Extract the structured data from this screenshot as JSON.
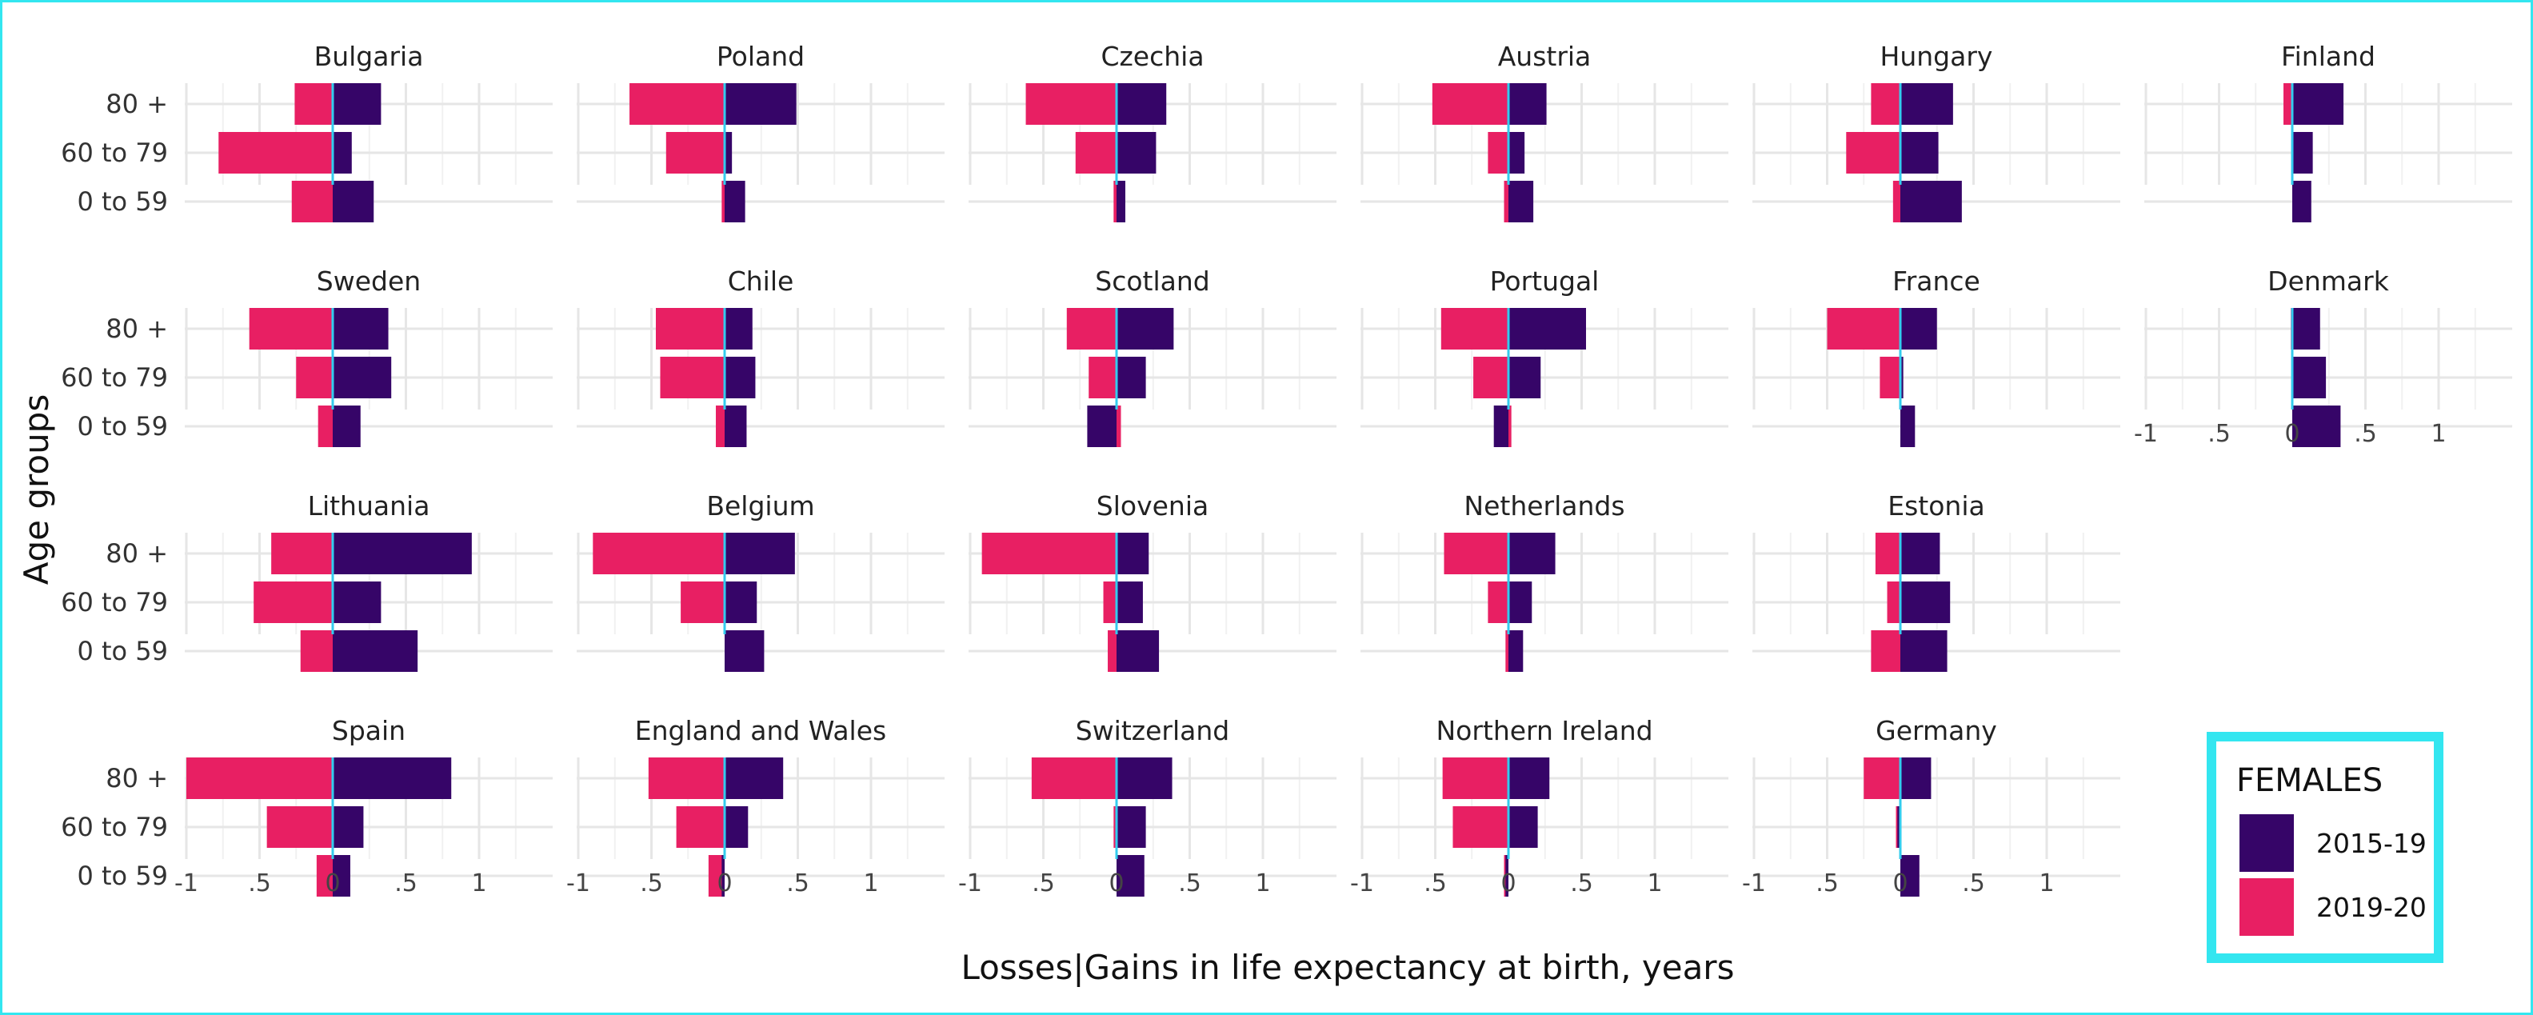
{
  "chart_data": {
    "type": "bar",
    "orientation": "horizontal",
    "layout": "small-multiples",
    "xlabel": "Losses|Gains in life expectancy at birth, years",
    "ylabel": "Age groups",
    "xlim": [
      -1,
      1.35
    ],
    "x_ticks": [
      -1,
      -0.5,
      0,
      0.5,
      1
    ],
    "x_tick_labels": [
      "-1",
      ".5",
      "0",
      ".5",
      "1"
    ],
    "age_groups": [
      "80 +",
      "60 to 79",
      "0 to 59"
    ],
    "grid": true,
    "legend": {
      "title": "FEMALES",
      "position": "bottom-right",
      "entries": [
        {
          "label": "2015-19",
          "color": "#360568"
        },
        {
          "label": "2019-20",
          "color": "#e81f63"
        }
      ]
    },
    "colors": {
      "2015-19": "#360568",
      "2019-20": "#e81f63",
      "zero_line": "#33ccee",
      "grid": "#e6e6e6",
      "frame": "#33e6f0"
    },
    "panels": [
      {
        "country": "Bulgaria",
        "p2015_19": [
          0.33,
          0.13,
          0.28
        ],
        "p2019_20": [
          -0.26,
          -0.78,
          -0.28
        ]
      },
      {
        "country": "Poland",
        "p2015_19": [
          0.49,
          0.05,
          0.14
        ],
        "p2019_20": [
          -0.65,
          -0.4,
          -0.02
        ]
      },
      {
        "country": "Czechia",
        "p2015_19": [
          0.34,
          0.27,
          0.06
        ],
        "p2019_20": [
          -0.62,
          -0.28,
          -0.02
        ]
      },
      {
        "country": "Austria",
        "p2015_19": [
          0.26,
          0.11,
          0.17
        ],
        "p2019_20": [
          -0.52,
          -0.14,
          -0.03
        ]
      },
      {
        "country": "Hungary",
        "p2015_19": [
          0.36,
          0.26,
          0.42
        ],
        "p2019_20": [
          -0.2,
          -0.37,
          -0.05
        ]
      },
      {
        "country": "Finland",
        "p2015_19": [
          0.35,
          0.14,
          0.13
        ],
        "p2019_20": [
          -0.06,
          0.05,
          0.07
        ]
      },
      {
        "country": "Sweden",
        "p2015_19": [
          0.38,
          0.4,
          0.19
        ],
        "p2019_20": [
          -0.57,
          -0.25,
          -0.1
        ]
      },
      {
        "country": "Chile",
        "p2015_19": [
          0.19,
          0.21,
          0.15
        ],
        "p2019_20": [
          -0.47,
          -0.44,
          -0.06
        ]
      },
      {
        "country": "Scotland",
        "p2015_19": [
          0.39,
          0.2,
          -0.2
        ],
        "p2019_20": [
          -0.34,
          -0.19,
          0.03
        ]
      },
      {
        "country": "Portugal",
        "p2015_19": [
          0.53,
          0.22,
          -0.1
        ],
        "p2019_20": [
          -0.46,
          -0.24,
          0.02
        ]
      },
      {
        "country": "France",
        "p2015_19": [
          0.25,
          0.02,
          0.1
        ],
        "p2019_20": [
          -0.5,
          -0.14,
          0.04
        ]
      },
      {
        "country": "Denmark",
        "p2015_19": [
          0.19,
          0.23,
          0.33
        ],
        "p2019_20": [
          -0.01,
          0.04,
          0.02
        ]
      },
      {
        "country": "Lithuania",
        "p2015_19": [
          0.95,
          0.33,
          0.58
        ],
        "p2019_20": [
          -0.42,
          -0.54,
          -0.22
        ]
      },
      {
        "country": "Belgium",
        "p2015_19": [
          0.48,
          0.22,
          0.27
        ],
        "p2019_20": [
          -0.9,
          -0.3,
          0.04
        ]
      },
      {
        "country": "Slovenia",
        "p2015_19": [
          0.22,
          0.18,
          0.29
        ],
        "p2019_20": [
          -0.92,
          -0.09,
          -0.06
        ]
      },
      {
        "country": "Netherlands",
        "p2015_19": [
          0.32,
          0.16,
          0.1
        ],
        "p2019_20": [
          -0.44,
          -0.14,
          -0.02
        ]
      },
      {
        "country": "Estonia",
        "p2015_19": [
          0.27,
          0.34,
          0.32
        ],
        "p2019_20": [
          -0.17,
          -0.09,
          -0.2
        ]
      },
      {
        "country": "Spain",
        "p2015_19": [
          0.81,
          0.21,
          0.12
        ],
        "p2019_20": [
          -1.0,
          -0.45,
          -0.11
        ]
      },
      {
        "country": "England and Wales",
        "p2015_19": [
          0.4,
          0.16,
          -0.02
        ],
        "p2019_20": [
          -0.52,
          -0.33,
          -0.11
        ]
      },
      {
        "country": "Switzerland",
        "p2015_19": [
          0.38,
          0.2,
          0.19
        ],
        "p2019_20": [
          -0.58,
          -0.02,
          0.03
        ]
      },
      {
        "country": "Northern Ireland",
        "p2015_19": [
          0.28,
          0.2,
          -0.02
        ],
        "p2019_20": [
          -0.45,
          -0.38,
          -0.03
        ]
      },
      {
        "country": "Germany",
        "p2015_19": [
          0.21,
          -0.02,
          0.13
        ],
        "p2019_20": [
          -0.25,
          -0.03,
          0.02
        ]
      }
    ]
  }
}
